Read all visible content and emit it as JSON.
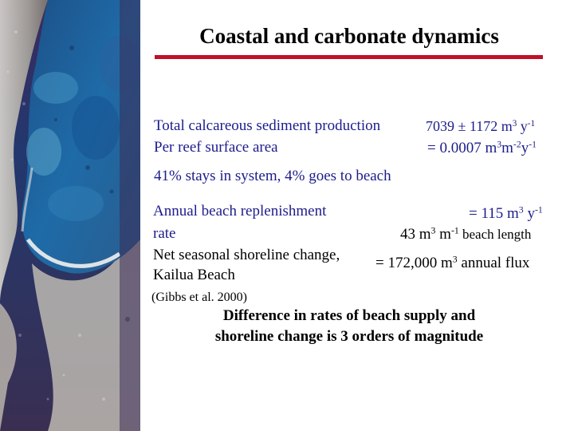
{
  "slide": {
    "title": "Coastal and carbonate dynamics",
    "colors": {
      "title_rule": "#c0102a",
      "body_text": "#1c1c8c",
      "title_text": "#000000"
    },
    "decoration": "aerial-coastline-photo"
  },
  "production": {
    "label_line1": "Total calcareous sediment production",
    "value_line1": "7039 ± 1172 m",
    "value_line1_sup1": "3",
    "value_line1_unit": " y",
    "value_line1_sup2": "-1",
    "label_line2": "Per reef surface area",
    "value_line2_prefix": "= 0.0007 m",
    "value_line2_sup1": "3",
    "value_line2_mid": "m",
    "value_line2_sup2": "-2",
    "value_line2_unit": "y",
    "value_line2_sup3": "-1",
    "stays": "41% stays in system, 4% goes to beach"
  },
  "beach": {
    "label_line1": "Annual beach replenishment",
    "label_line2": "rate",
    "value1_prefix": "= 115 m",
    "value1_sup1": "3",
    "value1_unit": " y",
    "value1_sup2": "-1",
    "value2_prefix": "43 m",
    "value2_sup1": "3",
    "value2_mid": " m",
    "value2_sup2": "-1",
    "value2_suffix": " beach length",
    "shoreline_label_line1": "Net seasonal shoreline change,",
    "shoreline_label_line2": "Kailua Beach",
    "shoreline_value_prefix": "= 172,000 m",
    "shoreline_value_sup": "3",
    "shoreline_value_suffix": " annual flux"
  },
  "citation": "(Gibbs et al. 2000)",
  "conclusion": {
    "line1": "Difference in rates of beach supply and",
    "line2": "shoreline change is 3 orders of magnitude"
  }
}
